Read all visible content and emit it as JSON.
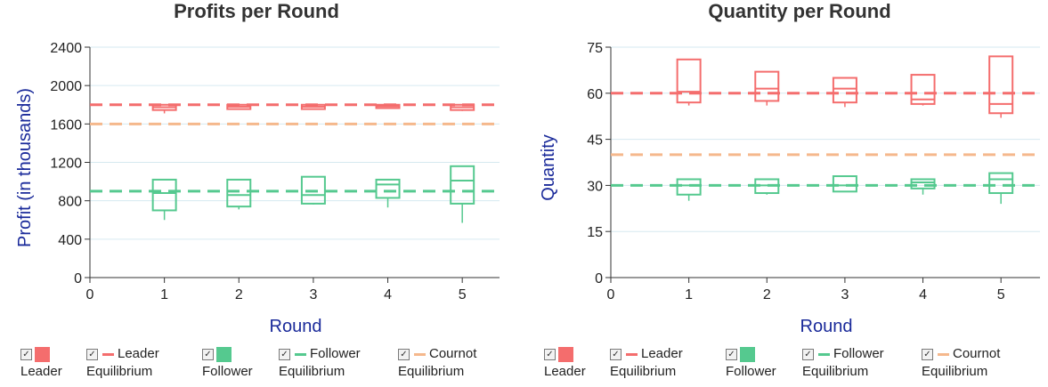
{
  "colors": {
    "leader": "#f46d6d",
    "follower": "#55c98f",
    "leader_eq": "#f46d6d",
    "follower_eq": "#55c98f",
    "cournot_eq": "#f5b88c",
    "grid": "#d6e9f0",
    "axis": "#333333",
    "axis_label": "#1a2a9a"
  },
  "legend": {
    "checkbox_glyph": "☑",
    "items": [
      {
        "label": "Leader",
        "kind": "swatch",
        "color_key": "leader"
      },
      {
        "label_line1": "Leader",
        "label_line2": "Equilibrium",
        "kind": "line",
        "color_key": "leader_eq"
      },
      {
        "label": "Follower",
        "kind": "swatch",
        "color_key": "follower"
      },
      {
        "label_line1": "Follower",
        "label_line2": "Equilibrium",
        "kind": "line",
        "color_key": "follower_eq"
      },
      {
        "label_line1": "Cournot",
        "label_line2": "Equilibrium",
        "kind": "line",
        "color_key": "cournot_eq"
      }
    ]
  },
  "chart_data": [
    {
      "type": "box",
      "title": "Profits per Round",
      "xlabel": "Round",
      "ylabel": "Profit (in thousands)",
      "xlim": [
        0,
        5.5
      ],
      "ylim": [
        0,
        2400
      ],
      "x_ticks": [
        "0",
        "1",
        "2",
        "3",
        "4",
        "5"
      ],
      "y_ticks": [
        "0",
        "400",
        "800",
        "1200",
        "1600",
        "2000",
        "2400"
      ],
      "grid": true,
      "reference_lines": [
        {
          "name": "Leader Equilibrium",
          "value": 1800,
          "color_key": "leader_eq"
        },
        {
          "name": "Cournot Equilibrium",
          "value": 1600,
          "color_key": "cournot_eq"
        },
        {
          "name": "Follower Equilibrium",
          "value": 900,
          "color_key": "follower_eq"
        }
      ],
      "series": [
        {
          "name": "Leader",
          "color_key": "leader",
          "boxes": [
            {
              "x": 1,
              "whisker_low": 1710,
              "q1": 1745,
              "median": 1775,
              "q3": 1800,
              "whisker_high": 1805
            },
            {
              "x": 2,
              "whisker_low": 1750,
              "q1": 1755,
              "median": 1780,
              "q3": 1800,
              "whisker_high": 1805
            },
            {
              "x": 3,
              "whisker_low": 1750,
              "q1": 1755,
              "median": 1780,
              "q3": 1800,
              "whisker_high": 1805
            },
            {
              "x": 4,
              "whisker_low": 1760,
              "q1": 1765,
              "median": 1785,
              "q3": 1800,
              "whisker_high": 1805
            },
            {
              "x": 5,
              "whisker_low": 1735,
              "q1": 1745,
              "median": 1775,
              "q3": 1800,
              "whisker_high": 1805
            }
          ]
        },
        {
          "name": "Follower",
          "color_key": "follower",
          "boxes": [
            {
              "x": 1,
              "whisker_low": 600,
              "q1": 700,
              "median": 880,
              "q3": 1020,
              "whisker_high": 1020
            },
            {
              "x": 2,
              "whisker_low": 710,
              "q1": 740,
              "median": 860,
              "q3": 1020,
              "whisker_high": 1020
            },
            {
              "x": 3,
              "whisker_low": 760,
              "q1": 770,
              "median": 860,
              "q3": 1050,
              "whisker_high": 1050
            },
            {
              "x": 4,
              "whisker_low": 730,
              "q1": 830,
              "median": 970,
              "q3": 1020,
              "whisker_high": 1020
            },
            {
              "x": 5,
              "whisker_low": 570,
              "q1": 770,
              "median": 1010,
              "q3": 1160,
              "whisker_high": 1160
            }
          ]
        }
      ]
    },
    {
      "type": "box",
      "title": "Quantity per Round",
      "xlabel": "Round",
      "ylabel": "Quantity",
      "xlim": [
        0,
        5.5
      ],
      "ylim": [
        0,
        75
      ],
      "x_ticks": [
        "0",
        "1",
        "2",
        "3",
        "4",
        "5"
      ],
      "y_ticks": [
        "0",
        "15",
        "30",
        "45",
        "60",
        "75"
      ],
      "grid": true,
      "reference_lines": [
        {
          "name": "Leader Equilibrium",
          "value": 60,
          "color_key": "leader_eq"
        },
        {
          "name": "Cournot Equilibrium",
          "value": 40,
          "color_key": "cournot_eq"
        },
        {
          "name": "Follower Equilibrium",
          "value": 30,
          "color_key": "follower_eq"
        }
      ],
      "series": [
        {
          "name": "Leader",
          "color_key": "leader",
          "boxes": [
            {
              "x": 1,
              "whisker_low": 56,
              "q1": 57,
              "median": 60.5,
              "q3": 71,
              "whisker_high": 71
            },
            {
              "x": 2,
              "whisker_low": 56,
              "q1": 57.5,
              "median": 61.5,
              "q3": 67,
              "whisker_high": 67
            },
            {
              "x": 3,
              "whisker_low": 55.5,
              "q1": 57,
              "median": 61.5,
              "q3": 65,
              "whisker_high": 65
            },
            {
              "x": 4,
              "whisker_low": 56,
              "q1": 56.5,
              "median": 58,
              "q3": 66,
              "whisker_high": 66
            },
            {
              "x": 5,
              "whisker_low": 52,
              "q1": 53.5,
              "median": 56.5,
              "q3": 72,
              "whisker_high": 72
            }
          ]
        },
        {
          "name": "Follower",
          "color_key": "follower",
          "boxes": [
            {
              "x": 1,
              "whisker_low": 25,
              "q1": 27,
              "median": 30,
              "q3": 32,
              "whisker_high": 32
            },
            {
              "x": 2,
              "whisker_low": 27,
              "q1": 27.5,
              "median": 30,
              "q3": 32,
              "whisker_high": 32
            },
            {
              "x": 3,
              "whisker_low": 28,
              "q1": 28,
              "median": 30,
              "q3": 33,
              "whisker_high": 33
            },
            {
              "x": 4,
              "whisker_low": 27,
              "q1": 29,
              "median": 31,
              "q3": 32,
              "whisker_high": 32
            },
            {
              "x": 5,
              "whisker_low": 24,
              "q1": 27.5,
              "median": 32,
              "q3": 34,
              "whisker_high": 34
            }
          ]
        }
      ]
    }
  ]
}
